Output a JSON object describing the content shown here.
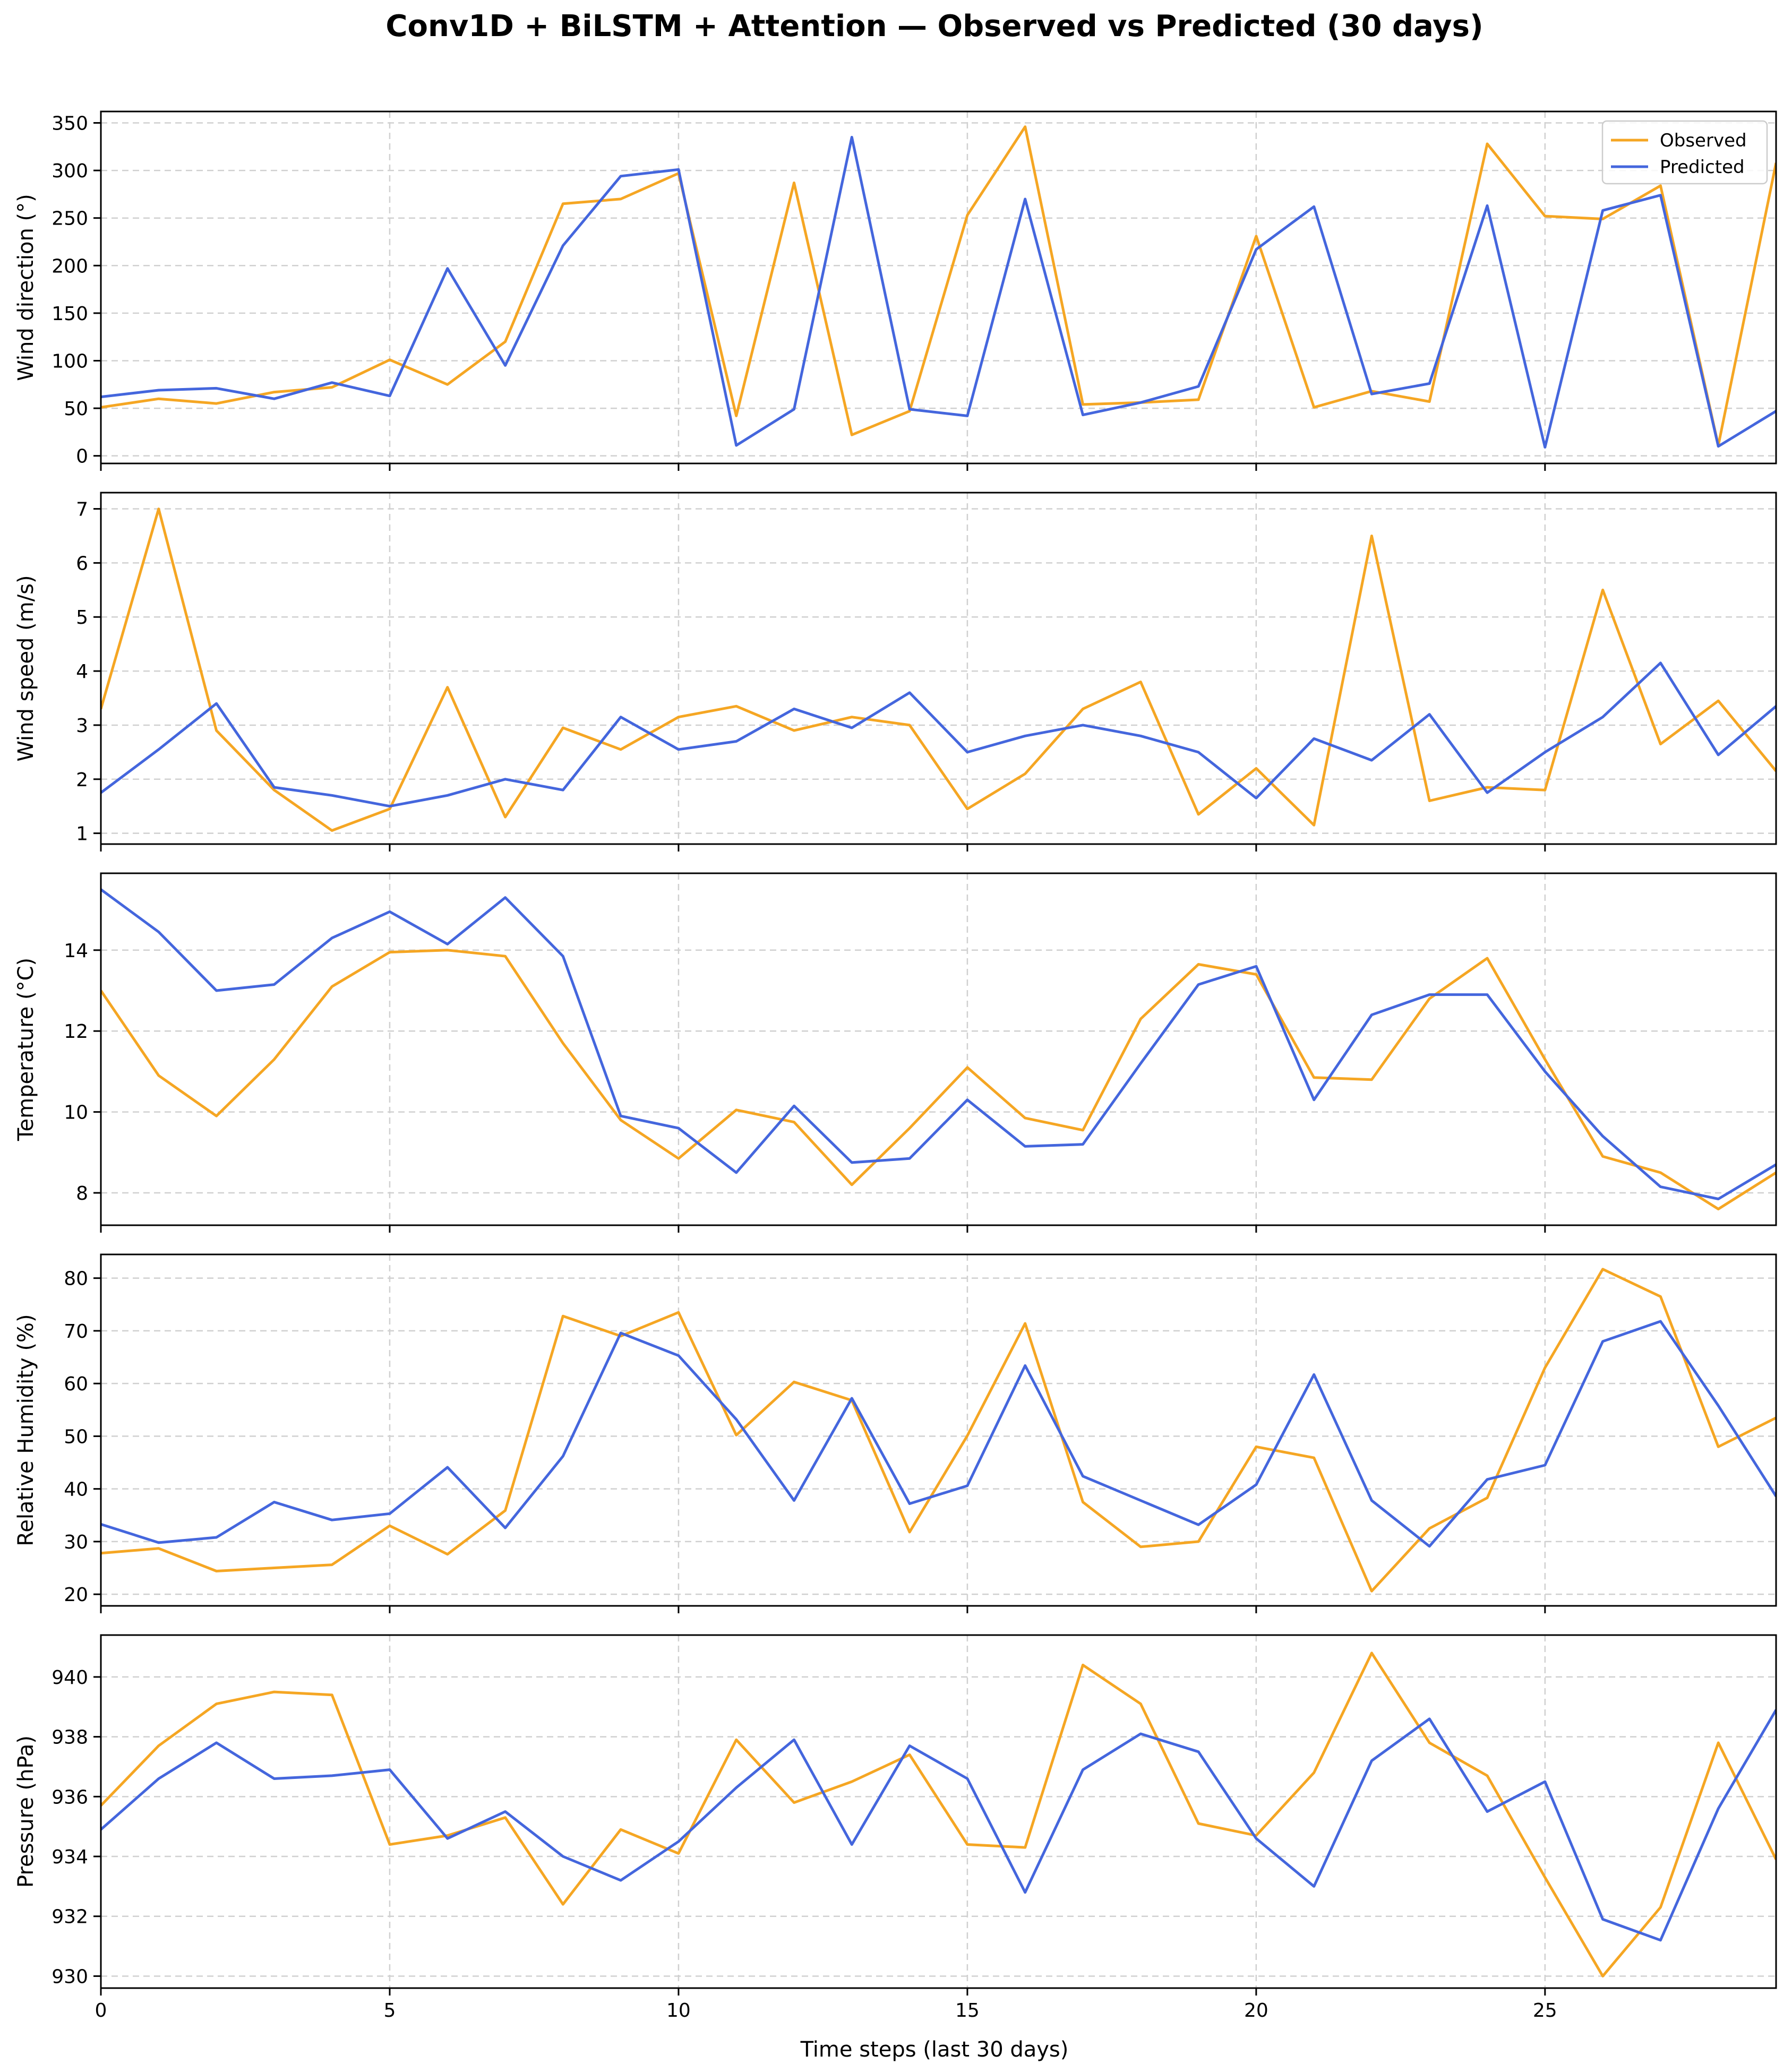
{
  "figure": {
    "title": "Conv1D + BiLSTM + Attention — Observed vs Predicted (30 days)",
    "xlabel": "Time steps (last 30 days)"
  },
  "colors": {
    "observed": "#f5a623",
    "predicted": "#4466dd",
    "grid": "#d0d0d0"
  },
  "chart_data": [
    {
      "type": "line",
      "ylabel": "Wind direction (°)",
      "ylim": [
        -8,
        362
      ],
      "yticks": [
        0,
        50,
        100,
        150,
        200,
        250,
        300,
        350
      ],
      "xlim": [
        0,
        29
      ],
      "xticks": [
        0,
        5,
        10,
        15,
        20,
        25
      ],
      "grid": true,
      "legend": {
        "position": "top-right",
        "entries": [
          "Observed",
          "Predicted"
        ]
      },
      "x": [
        0,
        1,
        2,
        3,
        4,
        5,
        6,
        7,
        8,
        9,
        10,
        11,
        12,
        13,
        14,
        15,
        16,
        17,
        18,
        19,
        20,
        21,
        22,
        23,
        24,
        25,
        26,
        27,
        28,
        29
      ],
      "series": [
        {
          "name": "Observed",
          "values": [
            51,
            60,
            55,
            67,
            72,
            101,
            75,
            120,
            265,
            270,
            297,
            42,
            287,
            22,
            47,
            253,
            346,
            54,
            56,
            59,
            231,
            51,
            68,
            57,
            328,
            252,
            249,
            284,
            11,
            308
          ]
        },
        {
          "name": "Predicted",
          "values": [
            62,
            69,
            71,
            60,
            77,
            63,
            197,
            95,
            221,
            294,
            301,
            11,
            49,
            335,
            49,
            42,
            270,
            43,
            56,
            73,
            217,
            262,
            65,
            76,
            263,
            9,
            258,
            274,
            10,
            47
          ]
        }
      ]
    },
    {
      "type": "line",
      "ylabel": "Wind speed (m/s)",
      "ylim": [
        0.8,
        7.3
      ],
      "yticks": [
        1,
        2,
        3,
        4,
        5,
        6,
        7
      ],
      "xlim": [
        0,
        29
      ],
      "xticks": [
        0,
        5,
        10,
        15,
        20,
        25
      ],
      "grid": true,
      "x": [
        0,
        1,
        2,
        3,
        4,
        5,
        6,
        7,
        8,
        9,
        10,
        11,
        12,
        13,
        14,
        15,
        16,
        17,
        18,
        19,
        20,
        21,
        22,
        23,
        24,
        25,
        26,
        27,
        28,
        29
      ],
      "series": [
        {
          "name": "Observed",
          "values": [
            3.3,
            7.0,
            2.9,
            1.8,
            1.05,
            1.45,
            3.7,
            1.3,
            2.95,
            2.55,
            3.15,
            3.35,
            2.9,
            3.15,
            3.0,
            1.45,
            2.1,
            3.3,
            3.8,
            1.35,
            2.2,
            1.15,
            6.5,
            1.6,
            1.85,
            1.8,
            5.5,
            2.65,
            3.45,
            2.15
          ]
        },
        {
          "name": "Predicted",
          "values": [
            1.75,
            2.55,
            3.4,
            1.85,
            1.7,
            1.5,
            1.7,
            2.0,
            1.8,
            3.15,
            2.55,
            2.7,
            3.3,
            2.95,
            3.6,
            2.5,
            2.8,
            3.0,
            2.8,
            2.5,
            1.65,
            2.75,
            2.35,
            3.2,
            1.75,
            2.5,
            3.15,
            4.15,
            2.45,
            3.35
          ]
        }
      ]
    },
    {
      "type": "line",
      "ylabel": "Temperature (°C)",
      "ylim": [
        7.2,
        15.9
      ],
      "yticks": [
        8,
        10,
        12,
        14
      ],
      "xlim": [
        0,
        29
      ],
      "xticks": [
        0,
        5,
        10,
        15,
        20,
        25
      ],
      "grid": true,
      "x": [
        0,
        1,
        2,
        3,
        4,
        5,
        6,
        7,
        8,
        9,
        10,
        11,
        12,
        13,
        14,
        15,
        16,
        17,
        18,
        19,
        20,
        21,
        22,
        23,
        24,
        25,
        26,
        27,
        28,
        29
      ],
      "series": [
        {
          "name": "Observed",
          "values": [
            13.0,
            10.9,
            9.9,
            11.3,
            13.1,
            13.95,
            14.0,
            13.85,
            11.7,
            9.8,
            8.85,
            10.05,
            9.75,
            8.2,
            9.6,
            11.1,
            9.85,
            9.55,
            12.3,
            13.65,
            13.4,
            10.85,
            10.8,
            12.8,
            13.8,
            11.3,
            8.9,
            8.5,
            7.6,
            8.5
          ]
        },
        {
          "name": "Predicted",
          "values": [
            15.5,
            14.45,
            13.0,
            13.15,
            14.3,
            14.95,
            14.15,
            15.3,
            13.85,
            9.9,
            9.6,
            8.5,
            10.15,
            8.75,
            8.85,
            10.3,
            9.15,
            9.2,
            11.2,
            13.15,
            13.6,
            10.3,
            12.4,
            12.9,
            12.9,
            11.0,
            9.4,
            8.15,
            7.85,
            8.7
          ]
        }
      ]
    },
    {
      "type": "line",
      "ylabel": "Relative Humidity (%)",
      "ylim": [
        17.8,
        84.5
      ],
      "yticks": [
        20,
        30,
        40,
        50,
        60,
        70,
        80
      ],
      "xlim": [
        0,
        29
      ],
      "xticks": [
        0,
        5,
        10,
        15,
        20,
        25
      ],
      "grid": true,
      "x": [
        0,
        1,
        2,
        3,
        4,
        5,
        6,
        7,
        8,
        9,
        10,
        11,
        12,
        13,
        14,
        15,
        16,
        17,
        18,
        19,
        20,
        21,
        22,
        23,
        24,
        25,
        26,
        27,
        28,
        29
      ],
      "series": [
        {
          "name": "Observed",
          "values": [
            27.8,
            28.7,
            24.4,
            25.0,
            25.6,
            33.0,
            27.6,
            35.9,
            72.8,
            69.0,
            73.5,
            50.2,
            60.3,
            56.8,
            31.8,
            50.1,
            71.4,
            37.5,
            29.0,
            30.0,
            48.0,
            45.9,
            20.6,
            32.5,
            38.3,
            63.0,
            81.7,
            76.5,
            48.0,
            53.5
          ]
        },
        {
          "name": "Predicted",
          "values": [
            33.3,
            29.8,
            30.8,
            37.5,
            34.1,
            35.3,
            44.1,
            32.6,
            46.2,
            69.6,
            65.3,
            53.2,
            37.8,
            57.2,
            37.2,
            40.6,
            63.4,
            42.4,
            37.8,
            33.2,
            40.8,
            61.7,
            37.8,
            29.1,
            41.8,
            44.5,
            68.0,
            71.8,
            55.8,
            38.6
          ]
        }
      ]
    },
    {
      "type": "line",
      "ylabel": "Pressure (hPa)",
      "ylim": [
        929.6,
        941.4
      ],
      "yticks": [
        930,
        932,
        934,
        936,
        938,
        940
      ],
      "xlim": [
        0,
        29
      ],
      "xticks": [
        0,
        5,
        10,
        15,
        20,
        25
      ],
      "grid": true,
      "x": [
        0,
        1,
        2,
        3,
        4,
        5,
        6,
        7,
        8,
        9,
        10,
        11,
        12,
        13,
        14,
        15,
        16,
        17,
        18,
        19,
        20,
        21,
        22,
        23,
        24,
        25,
        26,
        27,
        28,
        29
      ],
      "series": [
        {
          "name": "Observed",
          "values": [
            935.7,
            937.7,
            939.1,
            939.5,
            939.4,
            934.4,
            934.7,
            935.3,
            932.4,
            934.9,
            934.1,
            937.9,
            935.8,
            936.5,
            937.4,
            934.4,
            934.3,
            940.4,
            939.1,
            935.1,
            934.7,
            936.8,
            940.8,
            937.8,
            936.7,
            933.3,
            930.0,
            932.3,
            937.8,
            933.9
          ]
        },
        {
          "name": "Predicted",
          "values": [
            934.9,
            936.6,
            937.8,
            936.6,
            936.7,
            936.9,
            934.6,
            935.5,
            934.0,
            933.2,
            934.5,
            936.3,
            937.9,
            934.4,
            937.7,
            936.6,
            932.8,
            936.9,
            938.1,
            937.5,
            934.6,
            933.0,
            937.2,
            938.6,
            935.5,
            936.5,
            931.9,
            931.2,
            935.6,
            938.9
          ]
        }
      ]
    }
  ]
}
